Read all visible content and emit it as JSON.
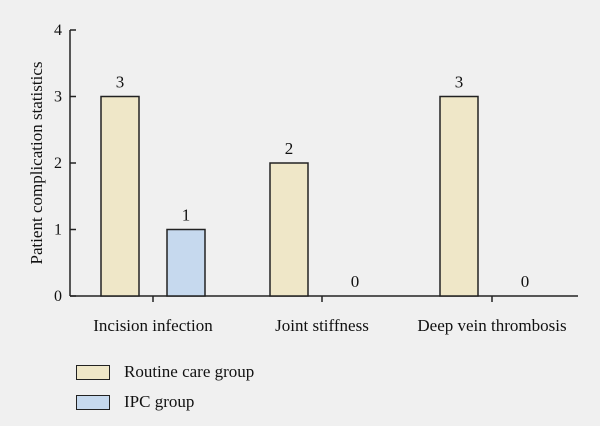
{
  "chart_data": {
    "type": "bar",
    "title": "",
    "xlabel": "",
    "ylabel": "Patient complication statistics",
    "ylim": [
      0,
      4
    ],
    "yticks": [
      0,
      1,
      2,
      3,
      4
    ],
    "categories": [
      "Incision infection",
      "Joint stiffness",
      "Deep vein thrombosis"
    ],
    "series": [
      {
        "name": "Routine care group",
        "color": "#efe7c8",
        "values": [
          3,
          2,
          3
        ]
      },
      {
        "name": "IPC group",
        "color": "#c6d9ee",
        "values": [
          1,
          0,
          0
        ]
      }
    ],
    "grid": false,
    "legend_position": "bottom-left"
  }
}
